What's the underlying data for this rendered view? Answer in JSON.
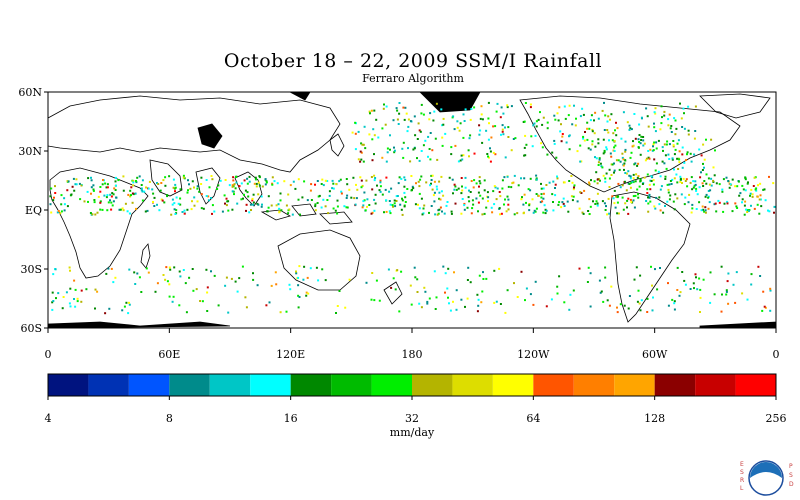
{
  "title": "October 18 – 22, 2009 SSM/I Rainfall",
  "subtitle": "Ferraro Algorithm",
  "map": {
    "projection": "cylindrical equidistant",
    "lat_range": [
      -60,
      60
    ],
    "lon_range": [
      0,
      360
    ],
    "lat_ticks": [
      {
        "lat": 60,
        "label": "60N"
      },
      {
        "lat": 30,
        "label": "30N"
      },
      {
        "lat": 0,
        "label": "EQ"
      },
      {
        "lat": -30,
        "label": "30S"
      },
      {
        "lat": -60,
        "label": "60S"
      }
    ],
    "lon_ticks": [
      {
        "lon": 0,
        "label": "0"
      },
      {
        "lon": 60,
        "label": "60E"
      },
      {
        "lon": 120,
        "label": "120E"
      },
      {
        "lon": 180,
        "label": "180"
      },
      {
        "lon": 240,
        "label": "120W"
      },
      {
        "lon": 300,
        "label": "60W"
      },
      {
        "lon": 360,
        "label": "0"
      }
    ]
  },
  "colorbar": {
    "unit_label": "mm/day",
    "tick_labels": [
      "4",
      "8",
      "16",
      "32",
      "64",
      "128",
      "256"
    ],
    "colors": [
      "#00137f",
      "#0032b4",
      "#0055ff",
      "#008b8b",
      "#00c6c6",
      "#00ffff",
      "#008800",
      "#00bb00",
      "#00ee00",
      "#b4b400",
      "#dddd00",
      "#ffff00",
      "#ff5500",
      "#ff7f00",
      "#ffa500",
      "#8b0000",
      "#c80000",
      "#ff0000"
    ]
  },
  "logo": {
    "left_text": "ESRL",
    "right_text": "PSD",
    "center_text": "NOAA"
  }
}
